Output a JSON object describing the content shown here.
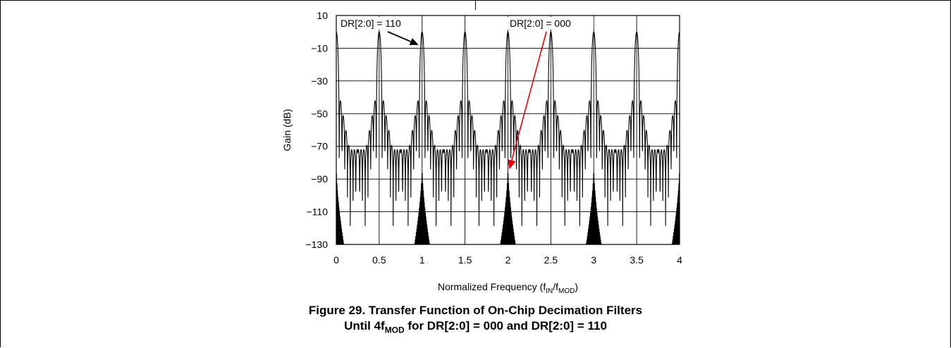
{
  "chart_data": {
    "type": "line",
    "xlabel_main": "Normalized Frequency (f",
    "xlabel_sub1": "IN",
    "xlabel_mid": "/f",
    "xlabel_sub2": "MOD",
    "xlabel_end": ")",
    "ylabel": "Gain (dB)",
    "xlim": [
      0,
      4
    ],
    "ylim": [
      -130,
      10
    ],
    "x_ticks": [
      "0",
      "0.5",
      "1",
      "1.5",
      "2",
      "2.5",
      "3",
      "3.5",
      "4"
    ],
    "y_ticks": [
      "10",
      "−10",
      "−30",
      "−50",
      "−70",
      "−90",
      "−110",
      "−130"
    ],
    "x_tick_values": [
      0,
      0.5,
      1,
      1.5,
      2,
      2.5,
      3,
      3.5,
      4
    ],
    "y_tick_values": [
      10,
      -10,
      -30,
      -50,
      -70,
      -90,
      -110,
      -130
    ],
    "grid": true,
    "series": [
      {
        "name": "DR[2:0] = 110",
        "color": "#000000",
        "peak_period": 0.5,
        "first_sidelobe_db": -38,
        "far_sidelobe_db": -72
      },
      {
        "name": "DR[2:0] = 000",
        "color": "#000000",
        "peak_period": 1,
        "notch_floor_db": -130
      }
    ],
    "annotations": [
      {
        "text": "DR[2:0] = 110",
        "arrow_color": "#000000",
        "points_to_x": 1.0,
        "points_to_y": -8
      },
      {
        "text": "DR[2:0] = 000",
        "arrow_color": "#e8000b",
        "points_to_x": 2.0,
        "points_to_y": -84
      }
    ]
  },
  "caption": {
    "line1": "Figure 29. Transfer Function of On-Chip Decimation Filters",
    "line2_pre": "Until 4f",
    "line2_sub": "MOD",
    "line2_post": " for DR[2:0] = 000 and DR[2:0] = 110"
  }
}
